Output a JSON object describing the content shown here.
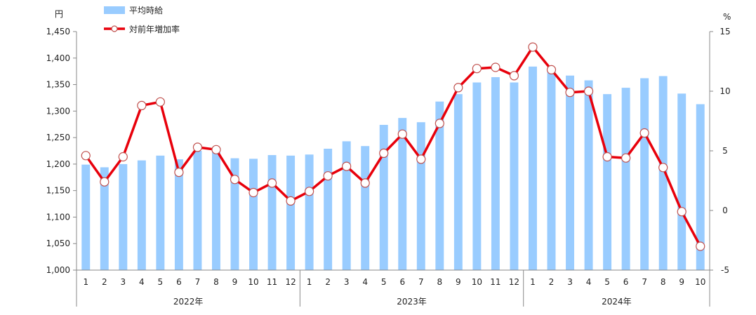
{
  "chart_data": {
    "type": "bar+line",
    "left_unit": "円",
    "right_unit": "%",
    "legend": {
      "bar_label": "平均時給",
      "line_label": "対前年増加率",
      "placement": "top-left"
    },
    "y_left": {
      "min": 1000,
      "max": 1450,
      "step": 50,
      "tick_labels": [
        "1,000",
        "1,050",
        "1,100",
        "1,150",
        "1,200",
        "1,250",
        "1,300",
        "1,350",
        "1,400",
        "1,450"
      ]
    },
    "y_right": {
      "min": -5,
      "max": 15,
      "step": 5,
      "tick_labels": [
        "-5",
        "0",
        "5",
        "10",
        "15"
      ]
    },
    "year_groups": [
      {
        "label": "2022年",
        "months": [
          "1",
          "2",
          "3",
          "4",
          "5",
          "6",
          "7",
          "8",
          "9",
          "10",
          "11",
          "12"
        ]
      },
      {
        "label": "2023年",
        "months": [
          "1",
          "2",
          "3",
          "4",
          "5",
          "6",
          "7",
          "8",
          "9",
          "10",
          "11",
          "12"
        ]
      },
      {
        "label": "2024年",
        "months": [
          "1",
          "2",
          "3",
          "4",
          "5",
          "6",
          "7",
          "8",
          "9",
          "10"
        ]
      }
    ],
    "bar_values": [
      1199,
      1194,
      1200,
      1207,
      1216,
      1209,
      1225,
      1224,
      1211,
      1210,
      1217,
      1216,
      1218,
      1229,
      1243,
      1234,
      1274,
      1287,
      1279,
      1318,
      1332,
      1354,
      1364,
      1354,
      1384,
      1378,
      1367,
      1358,
      1332,
      1344,
      1362,
      1366,
      1333,
      1313
    ],
    "line_values": [
      4.6,
      2.4,
      4.5,
      8.8,
      9.1,
      3.2,
      5.3,
      5.1,
      2.6,
      1.5,
      2.3,
      0.8,
      1.6,
      2.9,
      3.7,
      2.3,
      4.8,
      6.4,
      4.3,
      7.3,
      10.3,
      11.9,
      12.0,
      11.3,
      13.7,
      11.8,
      9.9,
      10.0,
      4.5,
      4.4,
      6.5,
      3.6,
      -0.1,
      -3.0
    ],
    "colors": {
      "bar": "#99ccff",
      "line": "#e8000b",
      "marker_fill": "#ffffff",
      "marker_stroke": "#c0504d",
      "axis": "#888888"
    },
    "grid": false
  }
}
